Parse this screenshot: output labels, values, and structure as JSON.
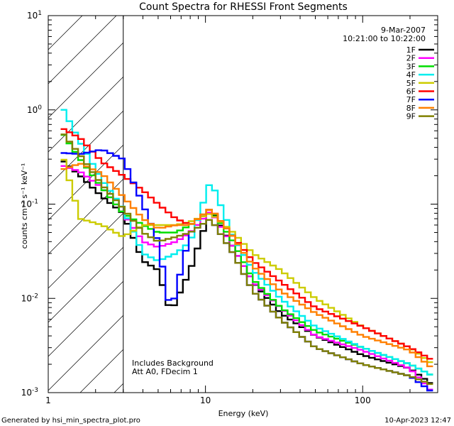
{
  "chart_data": {
    "type": "line",
    "title": "Count Spectra for RHESSI Front Segments",
    "date": "9-Mar-2007",
    "time_range": "10:21:00 to 10:22:00",
    "xlabel": "Energy (keV)",
    "ylabel": "counts cm⁻² s⁻¹ keV⁻¹",
    "xscale": "log",
    "yscale": "log",
    "xlim": [
      1,
      300
    ],
    "ylim": [
      0.001,
      10
    ],
    "x_ticks": [
      {
        "value": 1,
        "label": "1"
      },
      {
        "value": 10,
        "label": "10"
      },
      {
        "value": 100,
        "label": "100"
      }
    ],
    "y_ticks": [
      {
        "value": 0.001,
        "base": "10",
        "exp": "-3"
      },
      {
        "value": 0.01,
        "base": "10",
        "exp": "-2"
      },
      {
        "value": 0.1,
        "base": "10",
        "exp": "-1"
      },
      {
        "value": 1,
        "base": "10",
        "exp": "0"
      },
      {
        "value": 10,
        "base": "10",
        "exp": "1"
      }
    ],
    "hatched_region": {
      "x_range": [
        1,
        3
      ]
    },
    "annotations": [
      "Includes Background",
      "Att A0, FDecim 1"
    ],
    "legend_position": "top-right",
    "series": [
      {
        "name": "1F",
        "color": "#000000",
        "points": [
          [
            1.2,
            0.3
          ],
          [
            1.6,
            0.2
          ],
          [
            2.2,
            0.12
          ],
          [
            3.0,
            0.08
          ],
          [
            4.0,
            0.025
          ],
          [
            5.0,
            0.02
          ],
          [
            6.0,
            0.007
          ],
          [
            8.0,
            0.02
          ],
          [
            10.8,
            0.09
          ],
          [
            15,
            0.035
          ],
          [
            20,
            0.015
          ],
          [
            30,
            0.007
          ],
          [
            50,
            0.004
          ],
          [
            100,
            0.0025
          ],
          [
            200,
            0.0018
          ],
          [
            280,
            0.0012
          ]
        ]
      },
      {
        "name": "2F",
        "color": "#ff00ff",
        "points": [
          [
            1.2,
            0.26
          ],
          [
            1.6,
            0.22
          ],
          [
            2.2,
            0.15
          ],
          [
            3.0,
            0.08
          ],
          [
            4.0,
            0.04
          ],
          [
            5.0,
            0.035
          ],
          [
            6.5,
            0.04
          ],
          [
            8.0,
            0.05
          ],
          [
            10.8,
            0.085
          ],
          [
            15,
            0.035
          ],
          [
            20,
            0.015
          ],
          [
            30,
            0.008
          ],
          [
            50,
            0.004
          ],
          [
            100,
            0.0028
          ],
          [
            200,
            0.0018
          ],
          [
            280,
            0.001
          ]
        ]
      },
      {
        "name": "3F",
        "color": "#00dd00",
        "points": [
          [
            1.2,
            0.6
          ],
          [
            1.6,
            0.3
          ],
          [
            2.2,
            0.15
          ],
          [
            3.0,
            0.08
          ],
          [
            4.0,
            0.06
          ],
          [
            5.0,
            0.05
          ],
          [
            6.5,
            0.05
          ],
          [
            8.0,
            0.06
          ],
          [
            10.8,
            0.09
          ],
          [
            15,
            0.04
          ],
          [
            20,
            0.016
          ],
          [
            30,
            0.008
          ],
          [
            50,
            0.0045
          ],
          [
            100,
            0.003
          ],
          [
            200,
            0.002
          ],
          [
            280,
            0.0015
          ]
        ]
      },
      {
        "name": "4F",
        "color": "#00eeee",
        "points": [
          [
            1.2,
            1.15
          ],
          [
            1.6,
            0.45
          ],
          [
            2.2,
            0.18
          ],
          [
            3.0,
            0.09
          ],
          [
            4.0,
            0.03
          ],
          [
            5.0,
            0.025
          ],
          [
            6.5,
            0.03
          ],
          [
            8.0,
            0.04
          ],
          [
            10.8,
            0.18
          ],
          [
            15,
            0.045
          ],
          [
            20,
            0.02
          ],
          [
            30,
            0.01
          ],
          [
            50,
            0.005
          ],
          [
            100,
            0.003
          ],
          [
            200,
            0.002
          ],
          [
            280,
            0.0015
          ]
        ]
      },
      {
        "name": "5F",
        "color": "#cccc00",
        "points": [
          [
            1.2,
            0.38
          ],
          [
            1.6,
            0.07
          ],
          [
            2.2,
            0.06
          ],
          [
            3.0,
            0.045
          ],
          [
            4.0,
            0.06
          ],
          [
            5.0,
            0.06
          ],
          [
            6.5,
            0.06
          ],
          [
            8.0,
            0.065
          ],
          [
            10.8,
            0.08
          ],
          [
            15,
            0.05
          ],
          [
            20,
            0.03
          ],
          [
            30,
            0.02
          ],
          [
            50,
            0.01
          ],
          [
            100,
            0.005
          ],
          [
            200,
            0.003
          ],
          [
            280,
            0.002
          ]
        ]
      },
      {
        "name": "6F",
        "color": "#ff0000",
        "points": [
          [
            1.2,
            0.65
          ],
          [
            1.6,
            0.5
          ],
          [
            2.2,
            0.28
          ],
          [
            3.0,
            0.2
          ],
          [
            4.0,
            0.14
          ],
          [
            5.0,
            0.1
          ],
          [
            6.5,
            0.07
          ],
          [
            8.0,
            0.06
          ],
          [
            10.8,
            0.09
          ],
          [
            15,
            0.045
          ],
          [
            20,
            0.025
          ],
          [
            30,
            0.015
          ],
          [
            50,
            0.008
          ],
          [
            100,
            0.005
          ],
          [
            200,
            0.003
          ],
          [
            280,
            0.0022
          ]
        ]
      },
      {
        "name": "7F",
        "color": "#0000ff",
        "points": [
          [
            1.2,
            0.35
          ],
          [
            1.6,
            0.34
          ],
          [
            2.2,
            0.38
          ],
          [
            3.0,
            0.3
          ],
          [
            4.0,
            0.1
          ],
          [
            5.0,
            0.04
          ],
          [
            6.0,
            0.007
          ],
          [
            8.0,
            0.05
          ],
          [
            10.8,
            0.07
          ],
          [
            15,
            0.03
          ],
          [
            20,
            0.012
          ],
          [
            30,
            0.006
          ],
          [
            50,
            0.003
          ],
          [
            100,
            0.002
          ],
          [
            200,
            0.0015
          ],
          [
            280,
            0.001
          ]
        ]
      },
      {
        "name": "8F",
        "color": "#ff8000",
        "points": [
          [
            1.2,
            0.23
          ],
          [
            1.6,
            0.27
          ],
          [
            2.2,
            0.21
          ],
          [
            3.0,
            0.12
          ],
          [
            4.0,
            0.07
          ],
          [
            5.0,
            0.055
          ],
          [
            6.5,
            0.06
          ],
          [
            8.0,
            0.06
          ],
          [
            10.8,
            0.09
          ],
          [
            15,
            0.045
          ],
          [
            20,
            0.022
          ],
          [
            30,
            0.012
          ],
          [
            50,
            0.007
          ],
          [
            100,
            0.004
          ],
          [
            200,
            0.0028
          ],
          [
            280,
            0.0018
          ]
        ]
      },
      {
        "name": "9F",
        "color": "#808000",
        "points": [
          [
            1.2,
            0.6
          ],
          [
            1.6,
            0.33
          ],
          [
            2.2,
            0.16
          ],
          [
            3.0,
            0.09
          ],
          [
            4.0,
            0.05
          ],
          [
            5.0,
            0.04
          ],
          [
            6.5,
            0.045
          ],
          [
            8.0,
            0.05
          ],
          [
            10.8,
            0.07
          ],
          [
            15,
            0.03
          ],
          [
            20,
            0.012
          ],
          [
            30,
            0.006
          ],
          [
            50,
            0.003
          ],
          [
            100,
            0.002
          ],
          [
            200,
            0.0015
          ],
          [
            280,
            0.0012
          ]
        ]
      }
    ]
  },
  "footer": {
    "generated_by": "Generated by hsi_min_spectra_plot.pro",
    "timestamp": "10-Apr-2023 12:47"
  }
}
